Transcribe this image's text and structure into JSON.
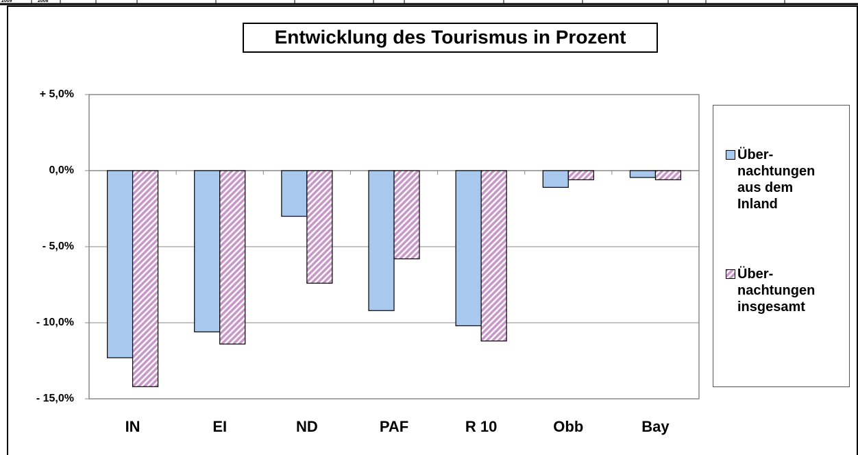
{
  "top_row": [
    "2009",
    "2008"
  ],
  "chart_data": {
    "type": "bar",
    "title": "Entwicklung des Tourismus in Prozent",
    "categories": [
      "IN",
      "EI",
      "ND",
      "PAF",
      "R 10",
      "Obb",
      "Bay"
    ],
    "series": [
      {
        "name": "Über- nachtungen aus dem Inland",
        "color": "#a9c8ee",
        "values": [
          -12.3,
          -10.6,
          -3.0,
          -9.2,
          -10.2,
          -1.1,
          -0.45
        ]
      },
      {
        "name": "Über- nachtungen insgesamt",
        "color": "#c896c8",
        "pattern": "hatch",
        "values": [
          -14.2,
          -11.4,
          -7.4,
          -5.8,
          -11.2,
          -0.6,
          -0.6
        ]
      }
    ],
    "ylim": [
      -15,
      5
    ],
    "yticks": [
      {
        "value": -15,
        "label": "- 15,0%"
      },
      {
        "value": -10,
        "label": "- 10,0%"
      },
      {
        "value": -5,
        "label": "- 5,0%"
      },
      {
        "value": 0,
        "label": "0,0%"
      },
      {
        "value": 5,
        "label": "+ 5,0%"
      }
    ],
    "grid": true,
    "legend": "right"
  }
}
